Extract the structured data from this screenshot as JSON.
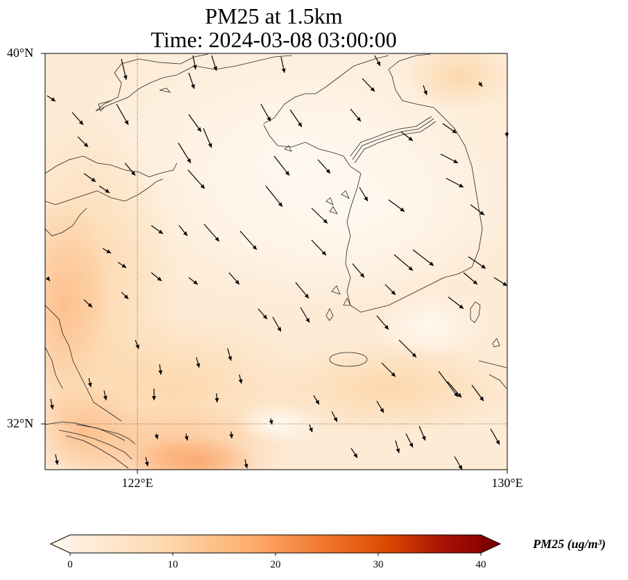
{
  "title": {
    "line1": "PM25 at 1.5km",
    "line2": "Time: 2024-03-08 03:00:00"
  },
  "map": {
    "lat_range": [
      31.6,
      40.0
    ],
    "lon_range": [
      120.0,
      130.0
    ],
    "lat_ticks": [
      {
        "value": 40,
        "label": "40°N"
      },
      {
        "value": 32,
        "label": "32°N"
      }
    ],
    "lon_ticks": [
      {
        "value": 122,
        "label": "122°E"
      },
      {
        "value": 130,
        "label": "130°E"
      }
    ],
    "gridlines": "dotted"
  },
  "colorbar": {
    "label": "PM25 (ug/m³)",
    "ticks": [
      "0",
      "10",
      "20",
      "30",
      "40"
    ],
    "range": [
      0,
      40
    ],
    "colormap": [
      "#fff5eb",
      "#fdd9b0",
      "#fdad6b",
      "#f37a30",
      "#c94709",
      "#8b0000",
      "#6a0000"
    ],
    "extend": "both"
  }
}
